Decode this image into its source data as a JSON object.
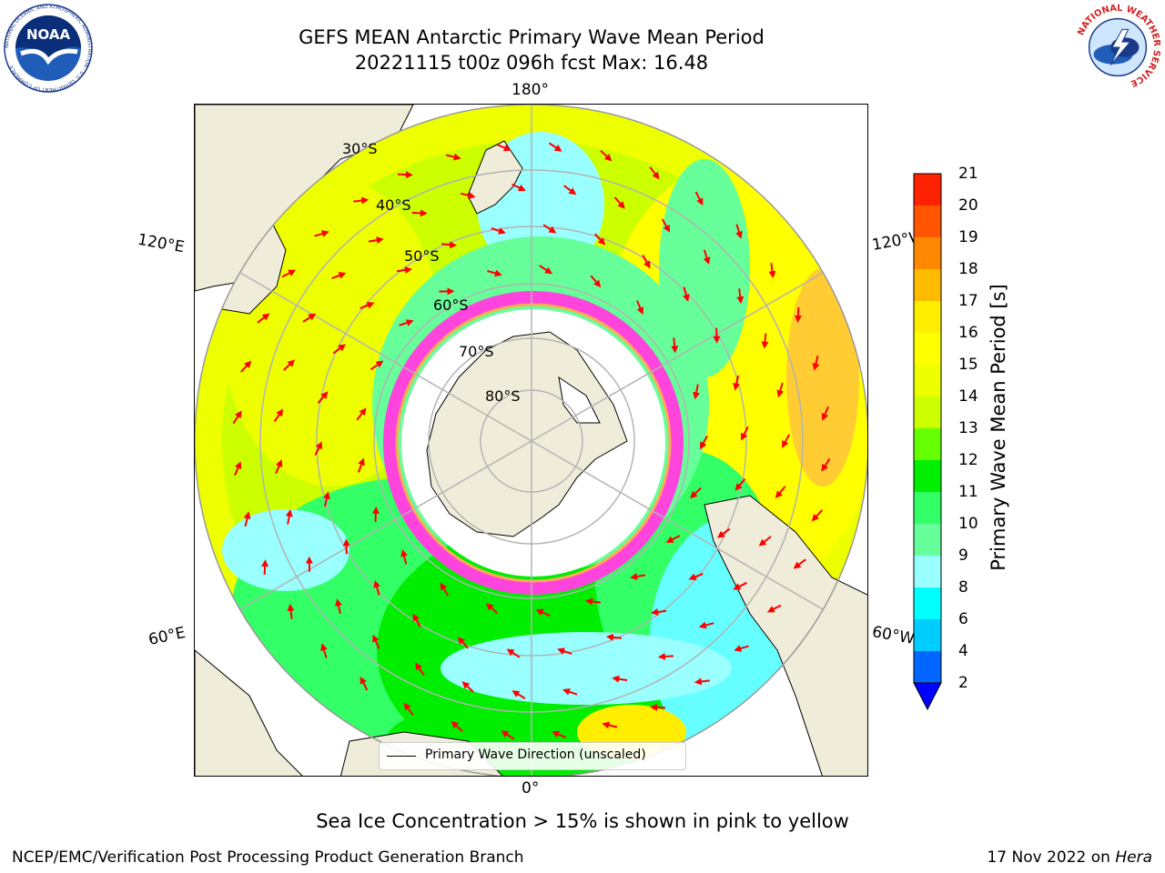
{
  "header": {
    "title": "GEFS MEAN Antarctic Primary Wave Mean Period",
    "subtitle": "20221115 t00z 096h fcst   Max: 16.48"
  },
  "logos": {
    "noaa_text": "NOAA",
    "noaa_ring": "NATIONAL OCEANIC AND ATMOSPHERIC ADMINISTRATION · U.S. DEPARTMENT OF COMMERCE",
    "nws_ring": "NATIONAL WEATHER SERVICE"
  },
  "map": {
    "projection": "south-polar-stereographic",
    "lon_labels": {
      "top": "180°",
      "bottom": "0°",
      "upper_left": "120°E",
      "lower_left": "60°E",
      "upper_right": "120°W",
      "lower_right": "60°W"
    },
    "lat_labels": [
      "30°S",
      "40°S",
      "50°S",
      "60°S",
      "70°S",
      "80°S"
    ],
    "legend_entry": "Primary Wave Direction (unscaled)",
    "colors": {
      "land": "#efedd9",
      "ice_shelf": "#ffffff",
      "sea_ice": "#ff44dd",
      "arrows": "#ff0000",
      "grid": "#b3b3b3"
    }
  },
  "colorbar": {
    "label": "Primary Wave Mean Period [s]",
    "ticks": [
      "2",
      "4",
      "6",
      "8",
      "9",
      "10",
      "11",
      "12",
      "13",
      "14",
      "15",
      "16",
      "17",
      "18",
      "19",
      "20",
      "21"
    ],
    "colors": [
      "#0066ff",
      "#00ccff",
      "#00ffff",
      "#99ffff",
      "#66ff99",
      "#33ff66",
      "#00ee00",
      "#66ff00",
      "#ccff00",
      "#eeff00",
      "#ffff00",
      "#ffee00",
      "#ffbb00",
      "#ff8800",
      "#ff5500",
      "#ff2200"
    ],
    "extend": "min"
  },
  "footer": {
    "caption": "Sea Ice Concentration > 15% is shown in pink to yellow",
    "left": "NCEP/EMC/Verification Post Processing Product Generation Branch",
    "date": "17 Nov 2022 on",
    "machine": "Hera"
  }
}
